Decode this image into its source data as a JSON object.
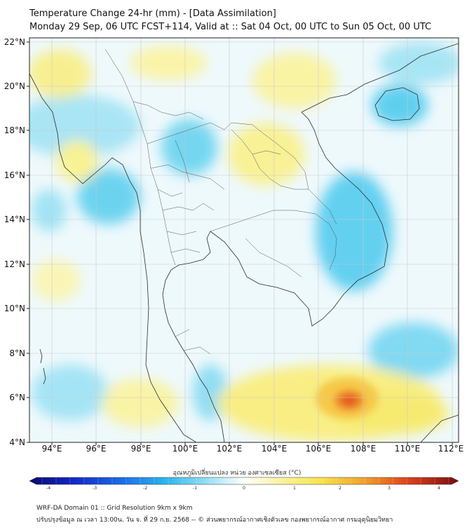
{
  "title": {
    "line1": "Temperature Change 24-hr (mm) - [Data Assimilation]",
    "line2": "Monday 29 Sep, 06 UTC FCST+114, Valid at :: Sat 04 Oct, 00 UTC to Sun 05 Oct, 00 UTC"
  },
  "map": {
    "lat_labels": [
      "22°N",
      "20°N",
      "18°N",
      "16°N",
      "14°N",
      "12°N",
      "10°N",
      "8°N",
      "6°N",
      "4°N"
    ],
    "lon_labels": [
      "94°E",
      "96°E",
      "98°E",
      "100°E",
      "102°E",
      "104°E",
      "106°E",
      "108°E",
      "110°E",
      "112°E"
    ],
    "lat_range": [
      4,
      22.2
    ],
    "lon_range": [
      93.1,
      112.4
    ],
    "warm_spot": {
      "lon": 107.6,
      "lat": 5.8,
      "value": 2.3
    }
  },
  "colorbar": {
    "title": "อุณหภูมิเปลี่ยนแปลง หน่วย องศาเซลเซียส (°C)",
    "ticks": [
      "-4",
      "-3",
      "-2",
      "-1",
      "0",
      "1",
      "2",
      "3",
      "4"
    ],
    "range": [
      -4,
      4
    ]
  },
  "footer": {
    "line1": "WRF-DA Domain 01 :: Grid Resolution 9km x 9km",
    "line2": "ปรับปรุงข้อมูล ณ เวลา 13:00น. วัน จ. ที่ 29 ก.ย. 2568 -- © ส่วนพยากรณ์อากาศเชิงตัวเลข กองพยากรณ์อากาศ กรมอุตุนิยมวิทยา"
  },
  "colors": {
    "cold": "#48cbea",
    "neutral": "#f4fbfd",
    "warm": "#f7ec6f",
    "hot": "#e54f14"
  }
}
